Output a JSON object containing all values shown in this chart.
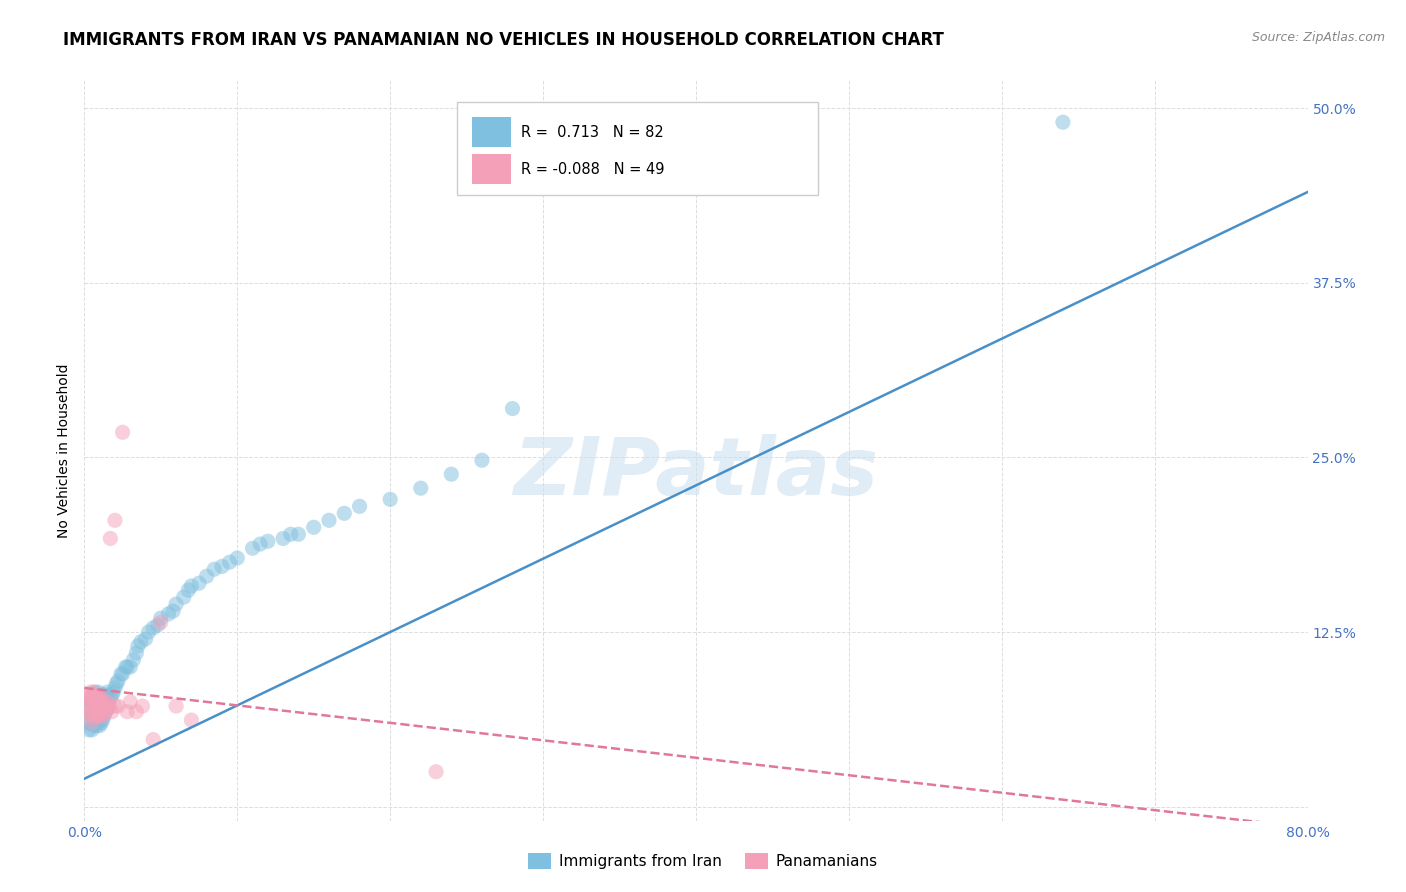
{
  "title": "IMMIGRANTS FROM IRAN VS PANAMANIAN NO VEHICLES IN HOUSEHOLD CORRELATION CHART",
  "source": "Source: ZipAtlas.com",
  "ylabel": "No Vehicles in Household",
  "xlim": [
    0.0,
    0.8
  ],
  "ylim": [
    -0.01,
    0.52
  ],
  "xticks": [
    0.0,
    0.1,
    0.2,
    0.3,
    0.4,
    0.5,
    0.6,
    0.7,
    0.8
  ],
  "xticklabels": [
    "0.0%",
    "",
    "",
    "",
    "",
    "",
    "",
    "",
    "80.0%"
  ],
  "yticks": [
    0.0,
    0.125,
    0.25,
    0.375,
    0.5
  ],
  "yticklabels_right": [
    "",
    "12.5%",
    "25.0%",
    "37.5%",
    "50.0%"
  ],
  "blue_R": 0.713,
  "blue_N": 82,
  "pink_R": -0.088,
  "pink_N": 49,
  "blue_color": "#7fbfdf",
  "pink_color": "#f4a0b8",
  "blue_line_color": "#4a90c8",
  "pink_line_color": "#e07898",
  "watermark": "ZIPatlas",
  "legend_label_blue": "Immigrants from Iran",
  "legend_label_pink": "Panamanians",
  "blue_line_x0": 0.0,
  "blue_line_y0": 0.02,
  "blue_line_x1": 0.8,
  "blue_line_y1": 0.44,
  "pink_line_x0": 0.0,
  "pink_line_y0": 0.085,
  "pink_line_x1": 0.8,
  "pink_line_y1": -0.015,
  "grid_color": "#dddddd",
  "background_color": "#ffffff",
  "title_fontsize": 12,
  "source_fontsize": 9,
  "axis_label_fontsize": 10,
  "tick_fontsize": 10,
  "tick_color_blue": "#4472c4",
  "tick_color_x": "#4472c4",
  "scatter_size": 120,
  "scatter_alpha": 0.5,
  "line_width": 1.8,
  "blue_scatter_x": [
    0.002,
    0.003,
    0.003,
    0.004,
    0.004,
    0.005,
    0.005,
    0.005,
    0.006,
    0.006,
    0.006,
    0.007,
    0.007,
    0.007,
    0.008,
    0.008,
    0.008,
    0.009,
    0.009,
    0.009,
    0.01,
    0.01,
    0.01,
    0.011,
    0.011,
    0.012,
    0.012,
    0.013,
    0.013,
    0.014,
    0.014,
    0.015,
    0.015,
    0.016,
    0.017,
    0.018,
    0.019,
    0.02,
    0.021,
    0.022,
    0.024,
    0.025,
    0.027,
    0.028,
    0.03,
    0.032,
    0.034,
    0.035,
    0.037,
    0.04,
    0.042,
    0.045,
    0.048,
    0.05,
    0.055,
    0.058,
    0.06,
    0.065,
    0.068,
    0.07,
    0.075,
    0.08,
    0.085,
    0.09,
    0.095,
    0.1,
    0.11,
    0.115,
    0.12,
    0.13,
    0.135,
    0.14,
    0.15,
    0.16,
    0.17,
    0.18,
    0.2,
    0.22,
    0.24,
    0.26,
    0.28,
    0.64
  ],
  "blue_scatter_y": [
    0.06,
    0.055,
    0.07,
    0.06,
    0.075,
    0.055,
    0.065,
    0.075,
    0.058,
    0.068,
    0.08,
    0.06,
    0.072,
    0.082,
    0.058,
    0.07,
    0.08,
    0.06,
    0.072,
    0.082,
    0.058,
    0.068,
    0.078,
    0.06,
    0.075,
    0.062,
    0.08,
    0.065,
    0.078,
    0.068,
    0.08,
    0.07,
    0.082,
    0.075,
    0.078,
    0.08,
    0.082,
    0.085,
    0.088,
    0.09,
    0.095,
    0.095,
    0.1,
    0.1,
    0.1,
    0.105,
    0.11,
    0.115,
    0.118,
    0.12,
    0.125,
    0.128,
    0.13,
    0.135,
    0.138,
    0.14,
    0.145,
    0.15,
    0.155,
    0.158,
    0.16,
    0.165,
    0.17,
    0.172,
    0.175,
    0.178,
    0.185,
    0.188,
    0.19,
    0.192,
    0.195,
    0.195,
    0.2,
    0.205,
    0.21,
    0.215,
    0.22,
    0.228,
    0.238,
    0.248,
    0.285,
    0.49
  ],
  "pink_scatter_x": [
    0.002,
    0.003,
    0.003,
    0.004,
    0.004,
    0.005,
    0.005,
    0.006,
    0.006,
    0.007,
    0.007,
    0.008,
    0.008,
    0.009,
    0.009,
    0.01,
    0.01,
    0.011,
    0.011,
    0.012,
    0.012,
    0.013,
    0.014,
    0.015,
    0.016,
    0.017,
    0.018,
    0.02,
    0.022,
    0.025,
    0.028,
    0.03,
    0.034,
    0.038,
    0.045,
    0.05,
    0.06,
    0.07,
    0.003,
    0.004,
    0.005,
    0.006,
    0.007,
    0.008,
    0.01,
    0.012,
    0.015,
    0.02,
    0.23
  ],
  "pink_scatter_y": [
    0.07,
    0.065,
    0.08,
    0.068,
    0.075,
    0.06,
    0.075,
    0.065,
    0.078,
    0.068,
    0.078,
    0.065,
    0.078,
    0.065,
    0.075,
    0.065,
    0.075,
    0.068,
    0.078,
    0.065,
    0.075,
    0.068,
    0.072,
    0.07,
    0.072,
    0.192,
    0.068,
    0.205,
    0.072,
    0.268,
    0.068,
    0.075,
    0.068,
    0.072,
    0.048,
    0.132,
    0.072,
    0.062,
    0.078,
    0.082,
    0.078,
    0.082,
    0.078,
    0.072,
    0.078,
    0.072,
    0.075,
    0.072,
    0.025
  ]
}
